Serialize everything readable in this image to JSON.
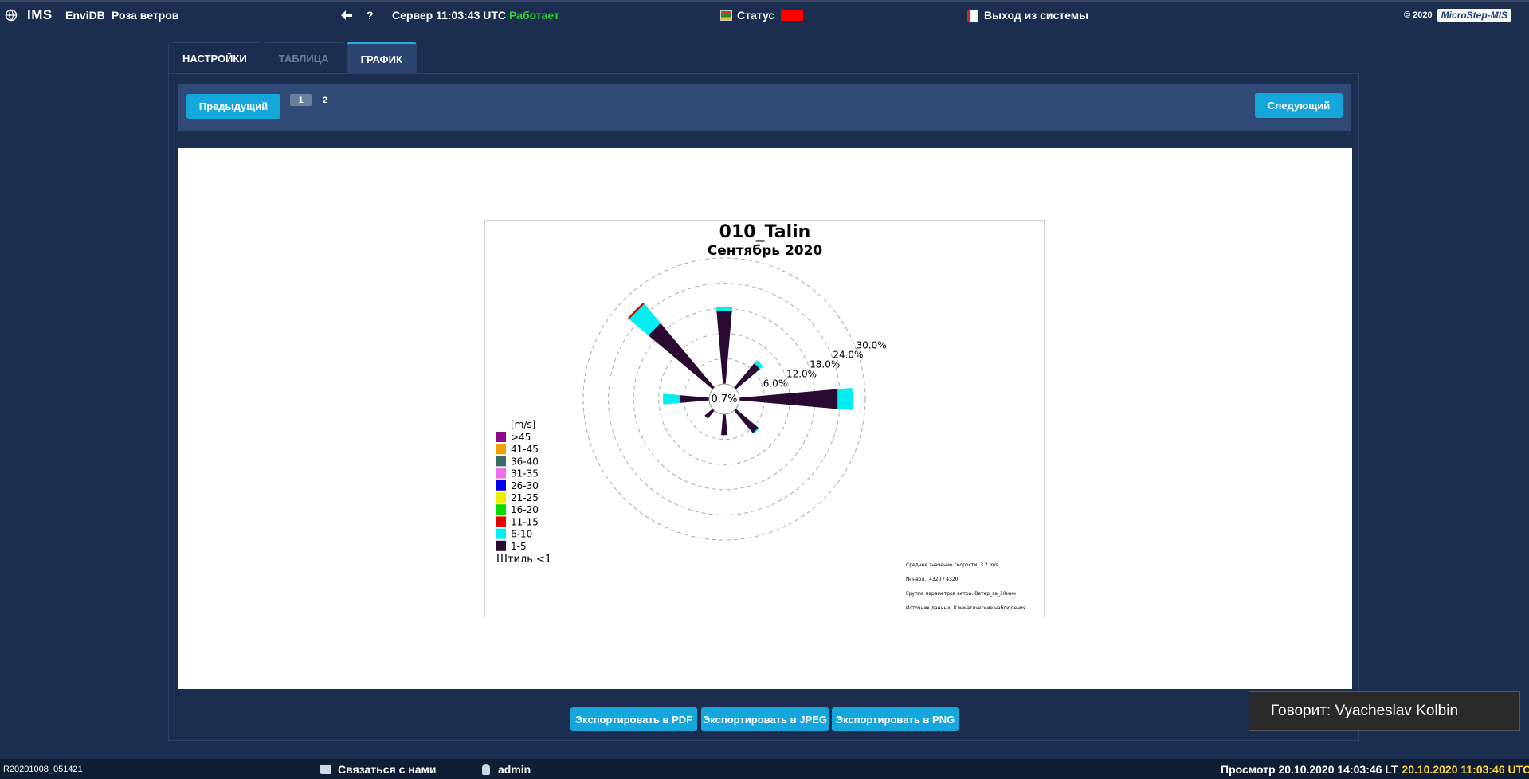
{
  "topbar": {
    "app": "IMS",
    "module": "EnviDB",
    "page": "Роза ветров",
    "help": "?",
    "server_label": "Сервер 11:03:43 UTC",
    "server_state": "Работает",
    "status_label": "Статус",
    "logout": "Выход из системы",
    "copyright": "© 2020",
    "logo": "MicroStep-MIS"
  },
  "tabs": [
    {
      "label": "НАСТРОЙКИ"
    },
    {
      "label": "ТАБЛИЦА"
    },
    {
      "label": "ГРАФИК"
    }
  ],
  "pager": {
    "prev": "Предыдущий",
    "next": "Следующий",
    "pages": [
      "1",
      "2"
    ]
  },
  "chart_data": {
    "type": "windrose",
    "title": "010_Talin",
    "subtitle": "Сентябрь 2020",
    "calm": "0.7%",
    "radial_ticks": [
      "6.0%",
      "12.0%",
      "18.0%",
      "24.0%",
      "30.0%"
    ],
    "rmax": 30,
    "legend_title": "[m/s]",
    "legend": [
      {
        "label": ">45",
        "color": "#8b0a8b"
      },
      {
        "label": "41-45",
        "color": "#f5a000"
      },
      {
        "label": "36-40",
        "color": "#3e6a6a"
      },
      {
        "label": "31-35",
        "color": "#ee70ee"
      },
      {
        "label": "26-30",
        "color": "#0000ee"
      },
      {
        "label": "21-25",
        "color": "#eeee00"
      },
      {
        "label": "16-20",
        "color": "#00dd00"
      },
      {
        "label": "11-15",
        "color": "#ee0000"
      },
      {
        "label": "6-10",
        "color": "#00eeee"
      },
      {
        "label": "1-5",
        "color": "#2a0a33"
      }
    ],
    "legend_calm": "Штиль <1",
    "directions": [
      {
        "angle": 0,
        "bins": [
          {
            "class": "1-5",
            "value": 17.5
          },
          {
            "class": "6-10",
            "value": 0.8
          }
        ]
      },
      {
        "angle": 45,
        "bins": [
          {
            "class": "1-5",
            "value": 7.5
          },
          {
            "class": "6-10",
            "value": 1
          }
        ]
      },
      {
        "angle": 90,
        "bins": [
          {
            "class": "1-5",
            "value": 23.5
          },
          {
            "class": "6-10",
            "value": 3.5
          }
        ]
      },
      {
        "angle": 135,
        "bins": [
          {
            "class": "1-5",
            "value": 7
          },
          {
            "class": "6-10",
            "value": 0.3
          }
        ]
      },
      {
        "angle": 180,
        "bins": [
          {
            "class": "1-5",
            "value": 5
          }
        ]
      },
      {
        "angle": 225,
        "bins": [
          {
            "class": "1-5",
            "value": 2.5
          }
        ]
      },
      {
        "angle": 270,
        "bins": [
          {
            "class": "1-5",
            "value": 7
          },
          {
            "class": "6-10",
            "value": 4
          }
        ]
      },
      {
        "angle": 315,
        "bins": [
          {
            "class": "1-5",
            "value": 20
          },
          {
            "class": "6-10",
            "value": 6
          },
          {
            "class": "11-15",
            "value": 0.4
          }
        ]
      }
    ],
    "info": [
      "Среднее значение скорости: 3.7 m/s",
      "№ набл.: 4320 / 4320",
      "Группа параметров ветра: Ветер_за_10мин",
      "Источник данных: Климатические наблюдения"
    ]
  },
  "export": {
    "pdf": "Экспортировать в PDF",
    "jpeg": "Экспортировать в JPEG",
    "png": "Экспортировать в PNG"
  },
  "speaker": "Говорит: Vyacheslav Kolbin",
  "bottombar": {
    "build": "R20201008_051421",
    "contact": "Связаться с нами",
    "user": "admin",
    "view_lt": "Просмотр 20.10.2020 14:03:46 LT",
    "view_utc": "20.10.2020 11:03:46 UTC"
  },
  "colors": {
    "accent": "#15a6dc",
    "background": "#1b2e4f",
    "status_ok": "#33cc33",
    "status_alert": "#ff0000"
  }
}
